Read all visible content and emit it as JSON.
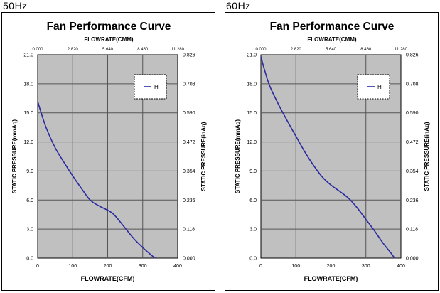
{
  "chart_data": [
    {
      "type": "line",
      "frequency_label": "50Hz",
      "title": "Fan Performance Curve",
      "top_xlabel": "FLOWRATE(CMM)",
      "xlabel": "FLOWRATE(CFM)",
      "ylabel_left": "STATIC PRESSURE(mmAq)",
      "ylabel_right": "STATIC PRESSURE(inAq)",
      "xlim": [
        0,
        400
      ],
      "ylim": [
        0,
        21
      ],
      "x_ticks": [
        "0",
        "100",
        "200",
        "300",
        "400"
      ],
      "top_x_ticks": [
        "0.000",
        "2.820",
        "5.640",
        "8.460",
        "11.280"
      ],
      "y_ticks": [
        "0.0",
        "3.0",
        "6.0",
        "9.0",
        "12.0",
        "15.0",
        "18.0",
        "21.0"
      ],
      "right_y_ticks": [
        "0.000",
        "0.118",
        "0.236",
        "0.354",
        "0.472",
        "0.590",
        "0.708",
        "0.826"
      ],
      "grid": true,
      "legend_position": "top-right",
      "colors": {
        "plot_bg": "#c0c0c0",
        "line": "#2b2ba0",
        "grid": "#555555"
      },
      "series": [
        {
          "name": "H",
          "x": [
            0,
            10,
            25,
            50,
            75,
            100,
            125,
            150,
            175,
            200,
            215,
            230,
            250,
            275,
            300,
            320,
            335
          ],
          "y": [
            16.2,
            15.0,
            13.4,
            11.4,
            9.9,
            8.5,
            7.2,
            6.0,
            5.4,
            4.95,
            4.6,
            4.0,
            3.1,
            2.0,
            1.1,
            0.45,
            0
          ]
        }
      ]
    },
    {
      "type": "line",
      "frequency_label": "60Hz",
      "title": "Fan Performance Curve",
      "top_xlabel": "FLOWRATE(CMM)",
      "xlabel": "FLOWRATE(CFM)",
      "ylabel_left": "STATIC PRESSURE(mmAq)",
      "ylabel_right": "STATIC PRESSURE(inAq)",
      "xlim": [
        0,
        400
      ],
      "ylim": [
        0,
        21
      ],
      "x_ticks": [
        "0",
        "100",
        "200",
        "300",
        "400"
      ],
      "top_x_ticks": [
        "0.000",
        "2.820",
        "5.640",
        "8.460",
        "11.280"
      ],
      "y_ticks": [
        "0.0",
        "3.0",
        "6.0",
        "9.0",
        "12.0",
        "15.0",
        "18.0",
        "21.0"
      ],
      "right_y_ticks": [
        "0.000",
        "0.118",
        "0.236",
        "0.354",
        "0.472",
        "0.590",
        "0.708",
        "0.826"
      ],
      "grid": true,
      "legend_position": "top-right",
      "colors": {
        "plot_bg": "#c0c0c0",
        "line": "#2b2ba0",
        "grid": "#555555"
      },
      "series": [
        {
          "name": "H",
          "x": [
            0,
            10,
            25,
            50,
            75,
            100,
            125,
            150,
            175,
            200,
            225,
            250,
            275,
            300,
            325,
            350,
            370,
            382
          ],
          "y": [
            20.8,
            19.5,
            17.8,
            15.9,
            14.2,
            12.6,
            11.0,
            9.6,
            8.4,
            7.55,
            6.9,
            6.2,
            5.2,
            4.0,
            2.8,
            1.5,
            0.6,
            0
          ]
        }
      ]
    }
  ]
}
